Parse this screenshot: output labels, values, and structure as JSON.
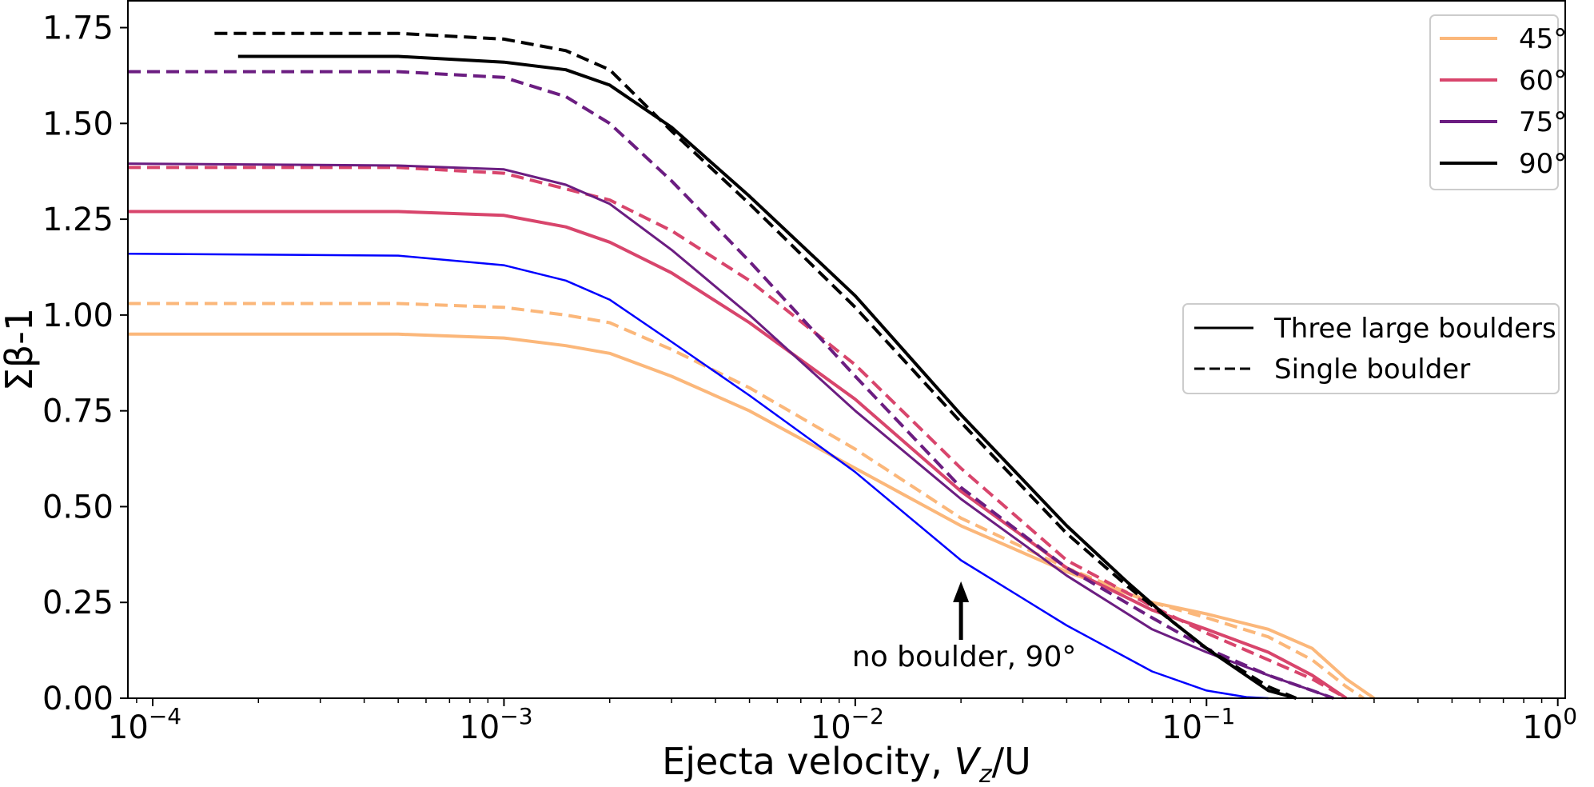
{
  "chart_data": {
    "type": "line",
    "xlabel_prefix": "Ejecta velocity, ",
    "xlabel_var": "V",
    "xlabel_sub": "z",
    "xlabel_rest": "/U",
    "ylabel": "Σβ-1",
    "x_scale": "log",
    "xlim": [
      8.5e-05,
      1.05
    ],
    "ylim": [
      0,
      1.82
    ],
    "x_ticks": [
      {
        "value": 0.0001,
        "base": "10",
        "exp": "−4"
      },
      {
        "value": 0.001,
        "base": "10",
        "exp": "−3"
      },
      {
        "value": 0.01,
        "base": "10",
        "exp": "−2"
      },
      {
        "value": 0.1,
        "base": "10",
        "exp": "−1"
      },
      {
        "value": 1,
        "base": "10",
        "exp": "0"
      }
    ],
    "y_ticks": [
      {
        "value": 0.0,
        "label": "0.00"
      },
      {
        "value": 0.25,
        "label": "0.25"
      },
      {
        "value": 0.5,
        "label": "0.50"
      },
      {
        "value": 0.75,
        "label": "0.75"
      },
      {
        "value": 1.0,
        "label": "1.00"
      },
      {
        "value": 1.25,
        "label": "1.25"
      },
      {
        "value": 1.5,
        "label": "1.50"
      },
      {
        "value": 1.75,
        "label": "1.75"
      }
    ],
    "grid": false,
    "series": [
      {
        "key": "45-single",
        "color": "#fbb77a",
        "style": "dashed",
        "width": 4,
        "x": [
          8.5e-05,
          0.0005,
          0.001,
          0.0015,
          0.002,
          0.003,
          0.005,
          0.01,
          0.02,
          0.04,
          0.07,
          0.1,
          0.15,
          0.2,
          0.25,
          0.28
        ],
        "y": [
          1.03,
          1.03,
          1.02,
          1.0,
          0.98,
          0.91,
          0.81,
          0.65,
          0.47,
          0.34,
          0.25,
          0.21,
          0.16,
          0.1,
          0.03,
          0.0
        ]
      },
      {
        "key": "45-three",
        "color": "#fbb77a",
        "style": "solid",
        "width": 4,
        "x": [
          8.5e-05,
          0.0005,
          0.001,
          0.0015,
          0.002,
          0.003,
          0.005,
          0.01,
          0.02,
          0.04,
          0.07,
          0.1,
          0.15,
          0.2,
          0.25,
          0.3
        ],
        "y": [
          0.95,
          0.95,
          0.94,
          0.92,
          0.9,
          0.84,
          0.75,
          0.6,
          0.45,
          0.33,
          0.25,
          0.22,
          0.18,
          0.13,
          0.05,
          0.0
        ]
      },
      {
        "key": "no-boulder-90",
        "color": "#0000ff",
        "style": "solid",
        "width": 2.5,
        "x": [
          8.5e-05,
          0.0005,
          0.001,
          0.0015,
          0.002,
          0.003,
          0.005,
          0.01,
          0.02,
          0.04,
          0.07,
          0.1,
          0.13,
          0.15
        ],
        "y": [
          1.16,
          1.155,
          1.13,
          1.09,
          1.04,
          0.93,
          0.79,
          0.59,
          0.36,
          0.19,
          0.07,
          0.02,
          0.003,
          0.0
        ]
      },
      {
        "key": "60-three",
        "color": "#d8456c",
        "style": "solid",
        "width": 4,
        "x": [
          8.5e-05,
          0.0005,
          0.001,
          0.0015,
          0.002,
          0.003,
          0.005,
          0.01,
          0.02,
          0.04,
          0.07,
          0.1,
          0.15,
          0.2,
          0.25
        ],
        "y": [
          1.27,
          1.27,
          1.26,
          1.23,
          1.19,
          1.11,
          0.98,
          0.78,
          0.54,
          0.34,
          0.23,
          0.18,
          0.12,
          0.06,
          0.0
        ]
      },
      {
        "key": "60-single",
        "color": "#d8456c",
        "style": "dashed",
        "width": 4,
        "x": [
          8.5e-05,
          0.0005,
          0.001,
          0.002,
          0.003,
          0.005,
          0.01,
          0.02,
          0.04,
          0.07,
          0.1,
          0.15,
          0.2,
          0.25
        ],
        "y": [
          1.385,
          1.385,
          1.37,
          1.3,
          1.22,
          1.09,
          0.87,
          0.6,
          0.36,
          0.24,
          0.17,
          0.1,
          0.05,
          0.0
        ]
      },
      {
        "key": "75-three",
        "color": "#6b1d81",
        "style": "solid",
        "width": 3,
        "x": [
          8.5e-05,
          0.0005,
          0.001,
          0.0015,
          0.002,
          0.003,
          0.005,
          0.01,
          0.02,
          0.04,
          0.07,
          0.1,
          0.15,
          0.2,
          0.23
        ],
        "y": [
          1.395,
          1.39,
          1.38,
          1.34,
          1.29,
          1.17,
          1.0,
          0.75,
          0.52,
          0.32,
          0.18,
          0.12,
          0.06,
          0.02,
          0.0
        ]
      },
      {
        "key": "75-single",
        "color": "#6b1d81",
        "style": "dashed",
        "width": 4,
        "x": [
          8.5e-05,
          0.0005,
          0.001,
          0.0015,
          0.002,
          0.003,
          0.005,
          0.01,
          0.02,
          0.04,
          0.07,
          0.1,
          0.15,
          0.2,
          0.23
        ],
        "y": [
          1.635,
          1.635,
          1.62,
          1.57,
          1.5,
          1.35,
          1.14,
          0.84,
          0.55,
          0.34,
          0.21,
          0.13,
          0.06,
          0.02,
          0.0
        ]
      },
      {
        "key": "90-three",
        "color": "#000000",
        "style": "solid",
        "width": 4,
        "x": [
          0.000175,
          0.0005,
          0.001,
          0.0015,
          0.002,
          0.003,
          0.005,
          0.01,
          0.02,
          0.04,
          0.06,
          0.08,
          0.1,
          0.15,
          0.18
        ],
        "y": [
          1.675,
          1.675,
          1.66,
          1.64,
          1.6,
          1.49,
          1.31,
          1.05,
          0.74,
          0.45,
          0.3,
          0.2,
          0.13,
          0.02,
          0.0
        ]
      },
      {
        "key": "90-single",
        "color": "#000000",
        "style": "dashed",
        "width": 4,
        "x": [
          0.00015,
          0.0005,
          0.001,
          0.0015,
          0.002,
          0.003,
          0.005,
          0.01,
          0.02,
          0.04,
          0.06,
          0.08,
          0.1,
          0.15,
          0.18
        ],
        "y": [
          1.735,
          1.735,
          1.72,
          1.69,
          1.64,
          1.48,
          1.29,
          1.02,
          0.72,
          0.43,
          0.29,
          0.2,
          0.13,
          0.03,
          0.0
        ]
      }
    ],
    "legend_angles": {
      "placement": "top-right",
      "entries": [
        {
          "label": "45°",
          "color": "#fbb77a"
        },
        {
          "label": "60°",
          "color": "#d8456c"
        },
        {
          "label": "75°",
          "color": "#6b1d81"
        },
        {
          "label": "90°",
          "color": "#000000"
        }
      ]
    },
    "legend_styles": {
      "placement": "center-right",
      "entries": [
        {
          "label": "Three large boulders",
          "style": "solid"
        },
        {
          "label": "Single boulder",
          "style": "dashed"
        }
      ]
    },
    "annotation": {
      "text": "no boulder, 90°",
      "x": 0.02,
      "y": 0.1,
      "arrow_to_y": 0.33
    }
  }
}
